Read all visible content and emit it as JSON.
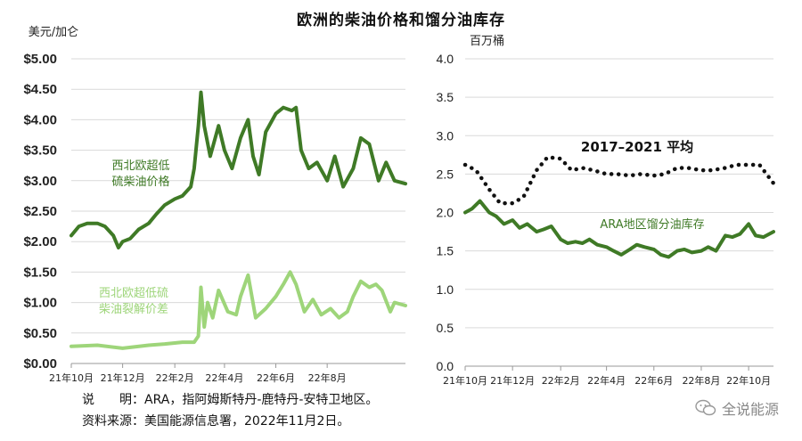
{
  "title": "欧洲的柴油价格和馏分油库存",
  "notes": {
    "note1": "说　　明：ARA，指阿姆斯特丹-鹿特丹-安特卫地区。",
    "note2": "资料来源：美国能源信息署，2022年11月2日。"
  },
  "watermark": "全说能源",
  "colors": {
    "dark_green": "#3f7a26",
    "light_green": "#9ed57a",
    "avg_dots": "#111111",
    "grid": "#d9d9d9"
  },
  "chart_data": [
    {
      "type": "line",
      "ylabel": "美元/加仑",
      "ylim": [
        0,
        5
      ],
      "yticks": [
        "$0.00",
        "$0.50",
        "$1.00",
        "$1.50",
        "$2.00",
        "$2.50",
        "$3.00",
        "$3.50",
        "$4.00",
        "$4.50",
        "$5.00"
      ],
      "xticks": [
        "21年10月",
        "21年12月",
        "22年2月",
        "22年4月",
        "22年6月",
        "22年8月"
      ],
      "x_start": "2021-10-01",
      "x_end": "2022-11-02",
      "grid": true,
      "series": [
        {
          "name": "西北欧超低硫柴油价格",
          "color": "#3f7a26",
          "x": [
            "2021-10-01",
            "2021-10-10",
            "2021-10-20",
            "2021-11-01",
            "2021-11-10",
            "2021-11-20",
            "2021-11-26",
            "2021-12-01",
            "2021-12-10",
            "2021-12-20",
            "2022-01-01",
            "2022-01-10",
            "2022-01-20",
            "2022-02-01",
            "2022-02-10",
            "2022-02-20",
            "2022-02-24",
            "2022-03-01",
            "2022-03-04",
            "2022-03-08",
            "2022-03-15",
            "2022-03-25",
            "2022-04-01",
            "2022-04-10",
            "2022-04-20",
            "2022-04-29",
            "2022-05-05",
            "2022-05-12",
            "2022-05-20",
            "2022-06-01",
            "2022-06-10",
            "2022-06-20",
            "2022-06-25",
            "2022-07-01",
            "2022-07-10",
            "2022-07-20",
            "2022-08-01",
            "2022-08-10",
            "2022-08-20",
            "2022-09-01",
            "2022-09-10",
            "2022-09-20",
            "2022-10-01",
            "2022-10-10",
            "2022-10-20",
            "2022-11-02"
          ],
          "values": [
            2.1,
            2.25,
            2.3,
            2.3,
            2.25,
            2.1,
            1.9,
            2.0,
            2.05,
            2.2,
            2.3,
            2.45,
            2.6,
            2.7,
            2.75,
            2.9,
            3.2,
            3.9,
            4.45,
            3.9,
            3.4,
            3.9,
            3.5,
            3.2,
            3.7,
            4.0,
            3.4,
            3.1,
            3.8,
            4.1,
            4.2,
            4.15,
            4.2,
            3.5,
            3.2,
            3.3,
            3.0,
            3.4,
            2.9,
            3.2,
            3.7,
            3.6,
            3.0,
            3.3,
            3.0,
            2.95
          ]
        },
        {
          "name": "西北欧超低硫柴油裂解价差",
          "color": "#9ed57a",
          "x": [
            "2021-10-01",
            "2021-11-01",
            "2021-12-01",
            "2022-01-01",
            "2022-01-20",
            "2022-02-10",
            "2022-02-24",
            "2022-03-01",
            "2022-03-04",
            "2022-03-08",
            "2022-03-12",
            "2022-03-18",
            "2022-03-25",
            "2022-04-05",
            "2022-04-15",
            "2022-04-20",
            "2022-04-29",
            "2022-05-08",
            "2022-05-20",
            "2022-06-01",
            "2022-06-10",
            "2022-06-18",
            "2022-06-25",
            "2022-07-05",
            "2022-07-15",
            "2022-07-25",
            "2022-08-05",
            "2022-08-15",
            "2022-08-25",
            "2022-09-01",
            "2022-09-10",
            "2022-09-20",
            "2022-09-28",
            "2022-10-05",
            "2022-10-15",
            "2022-10-20",
            "2022-11-02"
          ],
          "values": [
            0.28,
            0.3,
            0.25,
            0.3,
            0.32,
            0.35,
            0.35,
            0.45,
            1.25,
            0.6,
            1.0,
            0.75,
            1.2,
            0.85,
            0.8,
            1.1,
            1.45,
            0.75,
            0.9,
            1.1,
            1.3,
            1.5,
            1.3,
            0.85,
            1.05,
            0.8,
            0.9,
            0.75,
            0.85,
            1.1,
            1.35,
            1.25,
            1.3,
            1.2,
            0.85,
            1.0,
            0.95
          ]
        }
      ]
    },
    {
      "type": "line",
      "ylabel": "百万桶",
      "ylim": [
        0,
        4
      ],
      "yticks": [
        "0.0",
        "0.5",
        "1.0",
        "1.5",
        "2.0",
        "2.5",
        "3.0",
        "3.5",
        "4.0"
      ],
      "xticks": [
        "21年10月",
        "21年12月",
        "22年2月",
        "22年4月",
        "22年6月",
        "22年8月",
        "22年10月"
      ],
      "x_start": "2021-10-01",
      "x_end": "2022-11-02",
      "grid": true,
      "series": [
        {
          "name": "ARA地区馏分油库存",
          "color": "#3f7a26",
          "x": [
            "2021-10-01",
            "2021-10-10",
            "2021-10-20",
            "2021-11-01",
            "2021-11-10",
            "2021-11-20",
            "2021-12-01",
            "2021-12-10",
            "2021-12-20",
            "2022-01-01",
            "2022-01-10",
            "2022-01-20",
            "2022-02-01",
            "2022-02-10",
            "2022-02-20",
            "2022-03-01",
            "2022-03-10",
            "2022-03-20",
            "2022-04-01",
            "2022-04-10",
            "2022-04-20",
            "2022-05-01",
            "2022-05-10",
            "2022-05-20",
            "2022-06-01",
            "2022-06-10",
            "2022-06-20",
            "2022-07-01",
            "2022-07-10",
            "2022-07-20",
            "2022-08-01",
            "2022-08-10",
            "2022-08-20",
            "2022-09-01",
            "2022-09-10",
            "2022-09-20",
            "2022-10-01",
            "2022-10-10",
            "2022-10-20",
            "2022-11-02"
          ],
          "values": [
            2.0,
            2.05,
            2.15,
            2.0,
            1.95,
            1.85,
            1.9,
            1.8,
            1.85,
            1.75,
            1.78,
            1.82,
            1.65,
            1.6,
            1.62,
            1.6,
            1.65,
            1.58,
            1.55,
            1.5,
            1.45,
            1.52,
            1.58,
            1.55,
            1.52,
            1.45,
            1.42,
            1.5,
            1.52,
            1.48,
            1.5,
            1.55,
            1.5,
            1.7,
            1.68,
            1.72,
            1.85,
            1.7,
            1.68,
            1.75
          ]
        },
        {
          "name": "2017–2021 平均",
          "color": "#111111",
          "x": [
            "2021-10-01",
            "2021-10-15",
            "2021-11-01",
            "2021-11-15",
            "2021-12-01",
            "2021-12-15",
            "2022-01-01",
            "2022-01-15",
            "2022-02-01",
            "2022-02-15",
            "2022-03-01",
            "2022-03-15",
            "2022-04-01",
            "2022-04-15",
            "2022-05-01",
            "2022-05-15",
            "2022-06-01",
            "2022-06-15",
            "2022-07-01",
            "2022-07-15",
            "2022-08-01",
            "2022-08-15",
            "2022-09-01",
            "2022-09-15",
            "2022-10-01",
            "2022-10-15",
            "2022-11-02"
          ],
          "values": [
            2.62,
            2.55,
            2.3,
            2.12,
            2.12,
            2.2,
            2.55,
            2.72,
            2.7,
            2.55,
            2.58,
            2.55,
            2.5,
            2.5,
            2.48,
            2.5,
            2.48,
            2.5,
            2.58,
            2.58,
            2.55,
            2.55,
            2.58,
            2.62,
            2.62,
            2.62,
            2.38
          ]
        }
      ]
    }
  ]
}
